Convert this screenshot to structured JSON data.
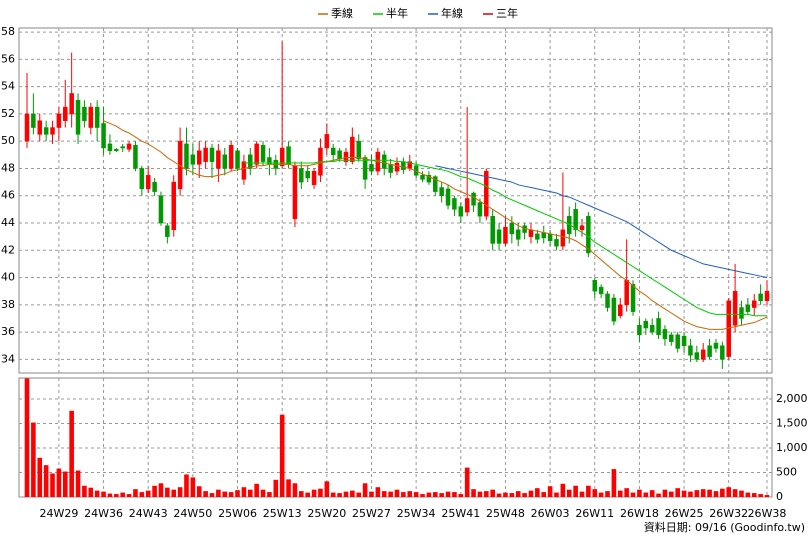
{
  "chart_data": {
    "type": "candlestick",
    "categories": [
      null,
      null,
      null,
      null,
      null,
      "24W29",
      null,
      null,
      null,
      null,
      null,
      null,
      "24W36",
      null,
      null,
      null,
      null,
      null,
      null,
      "24W43",
      null,
      null,
      null,
      null,
      null,
      null,
      "24W50",
      null,
      null,
      null,
      null,
      null,
      null,
      "25W06",
      null,
      null,
      null,
      null,
      null,
      null,
      "25W13",
      null,
      null,
      null,
      null,
      null,
      null,
      "25W20",
      null,
      null,
      null,
      null,
      null,
      null,
      "25W27",
      null,
      null,
      null,
      null,
      null,
      null,
      "25W34",
      null,
      null,
      null,
      null,
      null,
      null,
      "25W41",
      null,
      null,
      null,
      null,
      null,
      null,
      "25W48",
      null,
      null,
      null,
      null,
      null,
      null,
      "26W03",
      null,
      null,
      null,
      null,
      null,
      null,
      "26W11",
      null,
      null,
      null,
      null,
      null,
      null,
      "26W18",
      null,
      null,
      null,
      null,
      null,
      null,
      "26W25",
      null,
      null,
      null,
      null,
      null,
      null,
      "26W32",
      null,
      null,
      null,
      null,
      null,
      "26W38"
    ],
    "open": [
      50,
      52,
      50.5,
      51,
      50.5,
      51,
      51.5,
      52,
      53,
      52.5,
      51,
      52.5,
      51.3,
      49.8,
      49.4,
      49.6,
      49.4,
      49.7,
      48,
      46.5,
      47,
      46,
      43.8,
      43.5,
      46.5,
      49.8,
      49,
      48.3,
      48.5,
      49.5,
      48,
      49,
      48,
      49.3,
      47.2,
      49,
      48.3,
      49.7,
      48.8,
      48.6,
      48.2,
      49.6,
      44.3,
      48,
      47.8,
      46.8,
      47.5,
      49.5,
      49.5,
      49.3,
      48.5,
      48.5,
      50,
      48.8,
      48.3,
      47.8,
      49,
      48.3,
      47.8,
      48.5,
      48,
      48.2,
      47.5,
      47.5,
      47.4,
      46.6,
      46.5,
      45.8,
      45.2,
      44.8,
      46.2,
      45.5,
      44.5,
      44.5,
      43.5,
      42.5,
      44,
      43.5,
      43.8,
      43,
      43.2,
      43.3,
      43.2,
      42.8,
      42.3,
      44.5,
      45,
      43.5,
      44.5,
      39.8,
      39.3,
      38.8,
      38.5,
      37.2,
      38,
      39.5,
      36.5,
      36.8,
      36.5,
      37,
      36.2,
      35.8,
      35.8,
      35.7,
      35,
      34.5,
      34,
      35,
      35.2,
      35,
      34.2,
      36.5,
      37.8,
      38,
      37.8,
      38.8,
      38.3
    ],
    "high": [
      55,
      53.5,
      52,
      51.5,
      51.5,
      52.5,
      54.5,
      56.5,
      53.5,
      53,
      52.8,
      53,
      52.5,
      50.5,
      49.5,
      49.8,
      50,
      50,
      48.2,
      48.2,
      47.3,
      46.3,
      44,
      47.5,
      51,
      51,
      49.8,
      50,
      50,
      49.8,
      49.8,
      49.5,
      50,
      49.5,
      49,
      49.5,
      50,
      50,
      49.5,
      49,
      57.3,
      50,
      48.5,
      48.5,
      48.2,
      48,
      50.2,
      51.3,
      49.8,
      49.5,
      49.5,
      51,
      50.5,
      49,
      49,
      49.5,
      49.3,
      48.7,
      48.8,
      48.8,
      49,
      48.5,
      47.8,
      47.8,
      47.5,
      47,
      46.8,
      46,
      45.5,
      52.5,
      46.3,
      45.8,
      48,
      45,
      44,
      44.5,
      44.5,
      44,
      44,
      44,
      43.5,
      43.8,
      43.5,
      43.2,
      47.7,
      45.2,
      45.5,
      44.3,
      44.8,
      40,
      39.5,
      39,
      38.8,
      38.5,
      42.8,
      39.8,
      37,
      37,
      37,
      37.5,
      36.5,
      36,
      36,
      36,
      35.5,
      35,
      35.2,
      35.5,
      35.5,
      35.3,
      38.5,
      41,
      38.3,
      38.5,
      38.8,
      39.5,
      39.8
    ],
    "low": [
      49.5,
      50.5,
      50,
      50,
      49.8,
      50,
      51,
      51,
      49.8,
      51,
      50.5,
      50,
      49,
      49,
      49.2,
      49.2,
      49.2,
      47.8,
      46,
      46.2,
      46,
      43.8,
      42.5,
      43,
      46,
      47.5,
      47.5,
      47.3,
      48,
      47.3,
      47,
      47.5,
      47.8,
      47.8,
      46.8,
      47.5,
      48,
      48.2,
      47.5,
      47.5,
      48,
      48,
      43.7,
      46.5,
      47,
      46.5,
      47,
      49,
      48.5,
      48.5,
      48.2,
      48.3,
      48.5,
      46.5,
      47.5,
      47.5,
      47.5,
      47.3,
      47.5,
      47.6,
      47.8,
      47.3,
      47,
      46.8,
      46,
      45.5,
      45,
      44.5,
      44,
      44.5,
      44.8,
      44,
      44.2,
      42,
      42,
      42.3,
      42.5,
      42.3,
      42.8,
      42.5,
      42.5,
      42.5,
      42.3,
      42,
      42,
      42.5,
      43,
      43,
      41.5,
      38.5,
      38.5,
      37.5,
      36.5,
      37,
      37.5,
      37.2,
      35.3,
      35.8,
      35.8,
      35.5,
      35,
      35,
      34.5,
      34.5,
      33.8,
      33.8,
      33.8,
      34,
      34.5,
      33.3,
      34,
      36,
      36.5,
      37.3,
      37.2,
      38,
      38
    ],
    "close": [
      52,
      51,
      51.5,
      50.5,
      51,
      52,
      52.5,
      53.5,
      50.5,
      51.5,
      52.5,
      51,
      49.5,
      49.3,
      49.3,
      49.5,
      49.8,
      48,
      46.5,
      47.5,
      46.3,
      44,
      43,
      47,
      50,
      48,
      48.3,
      49.3,
      49.5,
      48.5,
      49.3,
      48,
      49.7,
      48,
      48.5,
      48,
      49.8,
      48.5,
      48.3,
      48,
      49.5,
      48.3,
      48.2,
      47,
      47.3,
      47.8,
      49.5,
      50.5,
      49,
      48.7,
      49.2,
      50.3,
      48.7,
      47.2,
      47.8,
      49.2,
      48,
      47.7,
      48.4,
      47.9,
      48.5,
      47.5,
      47.2,
      47,
      46.3,
      46,
      45.3,
      45,
      44.5,
      45.8,
      45.3,
      44.5,
      47.8,
      42.5,
      42.5,
      43.7,
      43.2,
      42.8,
      43.3,
      43.5,
      42.8,
      42.9,
      42.7,
      42.3,
      43.5,
      43.2,
      43.5,
      43.8,
      41.8,
      39,
      38.8,
      37.8,
      36.8,
      38,
      39.8,
      37.5,
      35.8,
      36.3,
      36,
      35.8,
      35.5,
      35.3,
      34.8,
      35,
      34.3,
      34,
      34.7,
      34.2,
      34.8,
      34,
      38.3,
      39,
      37,
      37.5,
      38.3,
      38.3,
      39
    ],
    "up_color": "#ff0000",
    "down_color": "#009900",
    "series": [
      {
        "name": "季線",
        "color": "#cc6600",
        "values": [
          null,
          null,
          null,
          null,
          null,
          null,
          null,
          null,
          null,
          null,
          null,
          null,
          51.5,
          51.3,
          51.1,
          50.8,
          50.6,
          50.3,
          50.0,
          49.8,
          49.5,
          49.2,
          48.8,
          48.5,
          48.2,
          47.9,
          47.7,
          47.5,
          47.4,
          47.4,
          47.5,
          47.6,
          47.8,
          47.9,
          48.0,
          48.1,
          48.2,
          48.2,
          48.3,
          48.3,
          48.3,
          48.3,
          48.2,
          48.2,
          48.2,
          48.3,
          48.4,
          48.5,
          48.6,
          48.7,
          48.8,
          48.8,
          48.8,
          48.7,
          48.6,
          48.5,
          48.4,
          48.3,
          48.2,
          48.1,
          48.0,
          47.8,
          47.6,
          47.4,
          47.2,
          47.0,
          46.8,
          46.5,
          46.3,
          46.1,
          45.9,
          45.6,
          45.3,
          45.0,
          44.7,
          44.4,
          44.1,
          43.8,
          43.6,
          43.5,
          43.4,
          43.3,
          43.2,
          43.1,
          43.0,
          42.9,
          42.7,
          42.4,
          42.1,
          41.7,
          41.3,
          40.9,
          40.5,
          40.1,
          39.8,
          39.4,
          39.0,
          38.7,
          38.3,
          38.0,
          37.7,
          37.4,
          37.1,
          36.8,
          36.6,
          36.4,
          36.3,
          36.2,
          36.2,
          36.2,
          36.3,
          36.4,
          36.5,
          36.6,
          36.7,
          36.9,
          37.1
        ]
      },
      {
        "name": "半年",
        "color": "#00cc00",
        "values": [
          null,
          null,
          null,
          null,
          null,
          null,
          null,
          null,
          null,
          null,
          null,
          null,
          null,
          null,
          null,
          null,
          null,
          null,
          null,
          null,
          null,
          null,
          null,
          null,
          null,
          null,
          null,
          null,
          null,
          null,
          null,
          null,
          null,
          null,
          48.4,
          48.4,
          48.4,
          48.4,
          48.4,
          48.4,
          48.4,
          48.4,
          48.4,
          48.4,
          48.4,
          48.4,
          48.5,
          48.5,
          48.5,
          48.6,
          48.6,
          48.6,
          48.6,
          48.6,
          48.6,
          48.6,
          48.6,
          48.6,
          48.5,
          48.5,
          48.4,
          48.3,
          48.2,
          48.1,
          48.0,
          47.9,
          47.8,
          47.6,
          47.4,
          47.3,
          47.1,
          46.9,
          46.7,
          46.4,
          46.2,
          45.9,
          45.7,
          45.5,
          45.3,
          45.1,
          44.9,
          44.7,
          44.5,
          44.3,
          44.1,
          43.9,
          43.6,
          43.3,
          43.0,
          42.6,
          42.3,
          42.0,
          41.7,
          41.4,
          41.1,
          40.8,
          40.5,
          40.2,
          39.9,
          39.6,
          39.3,
          39.0,
          38.7,
          38.4,
          38.1,
          37.8,
          37.6,
          37.4,
          37.3,
          37.3,
          37.3,
          37.3,
          37.3,
          37.3,
          37.2,
          37.2,
          37.2
        ]
      },
      {
        "name": "年線",
        "color": "#1f5fbf",
        "values": [
          null,
          null,
          null,
          null,
          null,
          null,
          null,
          null,
          null,
          null,
          null,
          null,
          null,
          null,
          null,
          null,
          null,
          null,
          null,
          null,
          null,
          null,
          null,
          null,
          null,
          null,
          null,
          null,
          null,
          null,
          null,
          null,
          null,
          null,
          null,
          null,
          null,
          null,
          null,
          null,
          null,
          null,
          null,
          null,
          null,
          null,
          null,
          null,
          null,
          null,
          null,
          null,
          null,
          null,
          null,
          null,
          null,
          null,
          null,
          null,
          null,
          null,
          null,
          null,
          48.2,
          48.1,
          48.0,
          47.9,
          47.8,
          47.7,
          47.6,
          47.5,
          47.4,
          47.3,
          47.2,
          47.1,
          47.0,
          46.8,
          46.7,
          46.6,
          46.5,
          46.4,
          46.3,
          46.2,
          46.0,
          45.9,
          45.7,
          45.5,
          45.3,
          45.1,
          44.9,
          44.7,
          44.5,
          44.3,
          44.1,
          43.8,
          43.5,
          43.2,
          42.9,
          42.6,
          42.3,
          42.0,
          41.8,
          41.6,
          41.4,
          41.2,
          41.0,
          40.9,
          40.8,
          40.7,
          40.6,
          40.5,
          40.4,
          40.3,
          40.2,
          40.1,
          40.0
        ]
      },
      {
        "name": "三年",
        "color": "#dd0000",
        "values": [
          null,
          null,
          null,
          null,
          null,
          null,
          null,
          null,
          null,
          null,
          null,
          null,
          null,
          null,
          null,
          null,
          null,
          null,
          null,
          null,
          null,
          null,
          null,
          null,
          null,
          null,
          null,
          null,
          null,
          null,
          null,
          null,
          null,
          null,
          null,
          null,
          null,
          null,
          null,
          null,
          null,
          null,
          null,
          null,
          null,
          null,
          null,
          null,
          null,
          null,
          null,
          null,
          null,
          null,
          null,
          null,
          null,
          null,
          null,
          null,
          null,
          null,
          null,
          null,
          null,
          null,
          null,
          null,
          null,
          null,
          null,
          null,
          null,
          null,
          null,
          null,
          null,
          null,
          null,
          null,
          null,
          null,
          null,
          null,
          null,
          null,
          null,
          null,
          null,
          null,
          null,
          null,
          null,
          null,
          null,
          null,
          null,
          null,
          null,
          null,
          null,
          null,
          null,
          null,
          null,
          null,
          null,
          null,
          null,
          null,
          null,
          null,
          null,
          null,
          null,
          null,
          null
        ]
      }
    ],
    "ylim": [
      33,
      58.3
    ],
    "yticks": [
      34,
      36,
      38,
      40,
      42,
      44,
      46,
      48,
      50,
      52,
      54,
      56,
      58
    ],
    "grid": true,
    "volume": {
      "color": "#ff0000",
      "ylim": [
        0,
        2430
      ],
      "yticks": [
        0,
        500,
        {
          "value": 1000,
          "label": "1,000"
        },
        {
          "value": 1500,
          "label": "1,500"
        },
        {
          "value": 2000,
          "label": "2,000"
        }
      ],
      "values": [
        2420,
        1520,
        800,
        650,
        480,
        580,
        520,
        1760,
        540,
        230,
        190,
        130,
        110,
        70,
        60,
        90,
        60,
        160,
        100,
        130,
        230,
        280,
        190,
        150,
        200,
        460,
        400,
        220,
        120,
        80,
        150,
        110,
        100,
        140,
        200,
        150,
        270,
        150,
        100,
        350,
        1680,
        360,
        280,
        120,
        90,
        150,
        170,
        320,
        90,
        80,
        110,
        130,
        90,
        280,
        110,
        200,
        120,
        110,
        150,
        100,
        120,
        100,
        60,
        90,
        100,
        80,
        110,
        100,
        60,
        600,
        160,
        110,
        120,
        150,
        70,
        90,
        80,
        120,
        80,
        130,
        180,
        100,
        220,
        90,
        270,
        150,
        230,
        110,
        230,
        160,
        90,
        120,
        570,
        130,
        180,
        90,
        150,
        90,
        140,
        70,
        150,
        110,
        180,
        130,
        110,
        140,
        160,
        150,
        120,
        170,
        200,
        160,
        130,
        90,
        80,
        60,
        40
      ]
    },
    "footer": "資料日期: 09/16  (Goodinfo.tw)"
  }
}
